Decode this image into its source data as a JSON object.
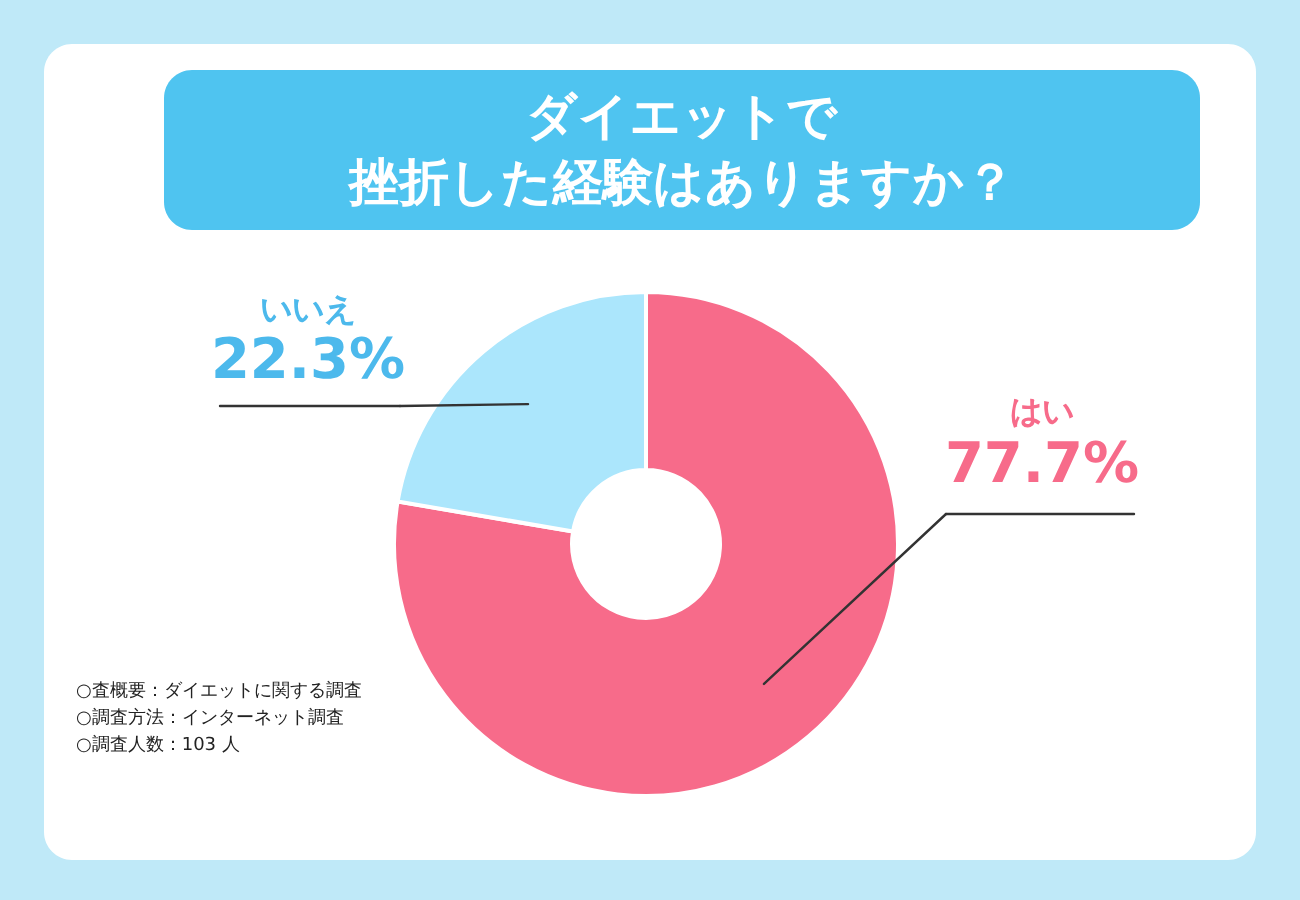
{
  "chart_data": {
    "type": "donut",
    "title": [
      "ダイエットで",
      "挫折した経験はありますか？"
    ],
    "categories": [
      "はい",
      "いいえ"
    ],
    "values": [
      77.7,
      22.3
    ],
    "colors": [
      "#f76b8a",
      "#abe6fc"
    ],
    "value_labels": [
      "77.7%",
      "22.3%"
    ],
    "annotations": [
      "○査概要：ダイエットに関する調査",
      "○調査方法：インターネット調査",
      "○調査人数：103 人"
    ]
  }
}
